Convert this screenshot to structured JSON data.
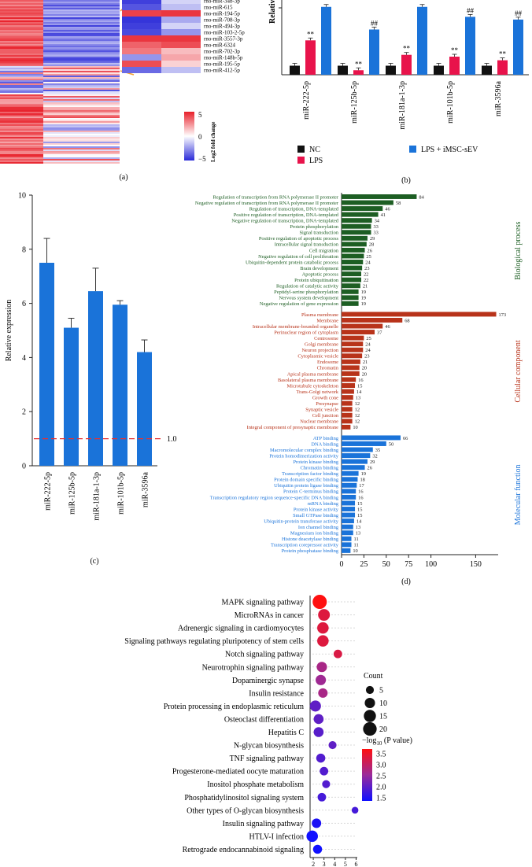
{
  "panel_a": {
    "label": "(a)",
    "zoom_rows": [
      "rno-miR-34b-3p",
      "rno-miR-615",
      "rno-miR-194-5p",
      "rno-miR-708-3p",
      "rno-miR-494-3p",
      "rno-miR-103-2-5p",
      "rno-miR-3557-3p",
      "rno-miR-6324",
      "rno-miR-702-3p",
      "rno-miR-148b-5p",
      "rno-miR-195-5p",
      "rno-miR-412-5p"
    ],
    "colorbar_label": "Log2 fold change",
    "colorbar_ticks": [
      "5",
      "0",
      "−5"
    ],
    "colors": {
      "high": "#e8202a",
      "mid": "#ffffff",
      "low": "#2a2ad8"
    }
  },
  "panel_b": {
    "label": "(b)",
    "ylabel": "Relative",
    "legend": [
      "NC",
      "LPS",
      "LPS + iMSC-sEV"
    ],
    "legend_colors": [
      "#111111",
      "#e8134b",
      "#1a73d9"
    ],
    "categories": [
      "miR-222-5p",
      "miR-125b-5p",
      "miR-181a-1-3p",
      "miR-101b-5p",
      "miR-3596a"
    ],
    "series": [
      {
        "name": "NC",
        "values": [
          1,
          1,
          1,
          1,
          1
        ]
      },
      {
        "name": "LPS",
        "values": [
          3.8,
          0.5,
          2.2,
          2.0,
          1.6
        ]
      },
      {
        "name": "LPS + iMSC-sEV",
        "values": [
          7.5,
          5.0,
          7.5,
          6.4,
          6.1
        ]
      }
    ],
    "marks": {
      "lps": "**",
      "sev": "##"
    }
  },
  "panel_c": {
    "label": "(c)",
    "chart_data": {
      "type": "bar",
      "categories": [
        "miR-222-5p",
        "miR-125b-5p",
        "miR-181a-1-3p",
        "miR-101b-5p",
        "miR-3596a"
      ],
      "values": [
        7.5,
        5.1,
        6.45,
        5.95,
        4.2
      ],
      "errors": [
        0.9,
        0.35,
        0.85,
        0.15,
        0.45
      ],
      "ylabel": "Relative expression",
      "ylim": [
        0,
        10
      ],
      "yticks": [
        "0",
        "2",
        "4",
        "6",
        "8",
        "10"
      ],
      "reference_line": 1.0,
      "reference_label": "1.0",
      "bar_color": "#1a73d9"
    }
  },
  "panel_d": {
    "label": "(d)",
    "xticks": [
      "0",
      "25",
      "50",
      "75",
      "100",
      "150"
    ],
    "groups": [
      {
        "name": "Biological process",
        "color": "#1d5e23",
        "terms": [
          [
            "Regulation of transcription from RNA polymerase II promoter",
            84
          ],
          [
            "Negative regulation of transcription from RNA polymerase II promoter",
            58
          ],
          [
            "Regulation of transcription, DNA-templated",
            46
          ],
          [
            "Positive regulation of transcription, DNA-templated",
            41
          ],
          [
            "Negative regulation of transcription, DNA-templated",
            34
          ],
          [
            "Protein phosphorylation",
            33
          ],
          [
            "Signal transduction",
            33
          ],
          [
            "Positive regulation of apoptotic process",
            29
          ],
          [
            "Intracellular signal transduction",
            28
          ],
          [
            "Cell migration",
            26
          ],
          [
            "Negative regulation of cell proliferation",
            25
          ],
          [
            "Ubiquitin-dependent protein catabolic process",
            24
          ],
          [
            "Brain development",
            23
          ],
          [
            "Apoptotic process",
            22
          ],
          [
            "Protein ubiquitination",
            22
          ],
          [
            "Regulation of catalytic activity",
            21
          ],
          [
            "Peptidyl-serine phosphorylation",
            19
          ],
          [
            "Nervous system development",
            19
          ],
          [
            "Negative regulation of gene expression",
            19
          ]
        ]
      },
      {
        "name": "Cellular component",
        "color": "#b8331a",
        "terms": [
          [
            "Plasma membrane",
            173
          ],
          [
            "Membrane",
            68
          ],
          [
            "Intracellular membrane-bounded organelle",
            46
          ],
          [
            "Perinuclear region of cytoplasm",
            37
          ],
          [
            "Centrosome",
            25
          ],
          [
            "Golgi membrane",
            24
          ],
          [
            "Neuron projection",
            24
          ],
          [
            "Cytoplasmic vesicle",
            23
          ],
          [
            "Endosome",
            21
          ],
          [
            "Chromatin",
            20
          ],
          [
            "Apical plasma membrane",
            20
          ],
          [
            "Basolateral plasma membrane",
            16
          ],
          [
            "Microtubule cytoskeleton",
            15
          ],
          [
            "Trans-Golgi network",
            14
          ],
          [
            "Growth cone",
            13
          ],
          [
            "Presynapse",
            12
          ],
          [
            "Synaptic vesicle",
            12
          ],
          [
            "Cell junction",
            12
          ],
          [
            "Nuclear membrane",
            12
          ],
          [
            "Integral component of presynaptic membrane",
            10
          ]
        ]
      },
      {
        "name": "Molecular function",
        "color": "#1a73d9",
        "terms": [
          [
            "ATP binding",
            66
          ],
          [
            "DNA binding",
            50
          ],
          [
            "Macromolecular complex binding",
            35
          ],
          [
            "Protein homodimerization activity",
            32
          ],
          [
            "Protein kinase binding",
            29
          ],
          [
            "Chromatin binding",
            26
          ],
          [
            "Transcription factor binding",
            19
          ],
          [
            "Protein domain specific binding",
            18
          ],
          [
            "Ubiquitin protein ligase binding",
            17
          ],
          [
            "Protein C-terminus binding",
            16
          ],
          [
            "Transcription regulatory region sequence-specific DNA binding",
            16
          ],
          [
            "mRNA binding",
            15
          ],
          [
            "Protein kinase activity",
            15
          ],
          [
            "Small GTPase binding",
            15
          ],
          [
            "Ubiquitin-protein transferase activity",
            14
          ],
          [
            "Ion channel binding",
            13
          ],
          [
            "Magnesium ion binding",
            13
          ],
          [
            "Histone deacetylase binding",
            11
          ],
          [
            "Transcription corepressor activity",
            11
          ],
          [
            "Protein phosphatase binding",
            10
          ]
        ]
      }
    ]
  },
  "panel_e": {
    "xticks": [
      "2",
      "3",
      "4",
      "5",
      "6"
    ],
    "pathways": [
      [
        "MAPK signaling pathway",
        2.6,
        22,
        3.6
      ],
      [
        "MicroRNAs in cancer",
        3.0,
        14,
        3.25
      ],
      [
        "Adrenergic signaling in cardiomyocytes",
        2.9,
        13,
        3.25
      ],
      [
        "Signaling pathways regulating pluripotency of stem cells",
        2.9,
        13,
        3.25
      ],
      [
        "Notch signaling pathway",
        4.3,
        6,
        3.2
      ],
      [
        "Neurotrophin signaling pathway",
        2.8,
        10,
        2.7
      ],
      [
        "Dopaminergic synapse",
        2.7,
        10,
        2.6
      ],
      [
        "Insulin resistance",
        2.9,
        8,
        2.7
      ],
      [
        "Protein processing in endoplasmic reticulum",
        2.2,
        12,
        2.1
      ],
      [
        "Osteoclast differentiation",
        2.5,
        9,
        2.1
      ],
      [
        "Hepatitis C",
        2.5,
        9,
        2.05
      ],
      [
        "N-glycan biosynthesis",
        3.8,
        5,
        2.1
      ],
      [
        "TNF signaling pathway",
        2.7,
        7,
        2.0
      ],
      [
        "Progesterone-mediated oocyte maturation",
        3.0,
        6,
        2.0
      ],
      [
        "Inositol phosphate metabolism",
        3.2,
        5,
        2.0
      ],
      [
        "Phosphatidylinositol signaling system",
        2.8,
        6,
        1.9
      ],
      [
        "Other types of O-glycan biosynthesis",
        5.9,
        3,
        1.9
      ],
      [
        "Insulin signaling pathway",
        2.3,
        8,
        1.6
      ],
      [
        "HTLV-I infection",
        1.9,
        13,
        1.5
      ],
      [
        "Retrograde endocannabinoid signaling",
        2.4,
        7,
        1.5
      ]
    ],
    "count_label": "Count",
    "count_ticks": [
      "5",
      "10",
      "15",
      "20"
    ],
    "pvalue_label": "−log",
    "pvalue_sub": "10",
    "pvalue_tail": " (P value)",
    "pvalue_ticks": [
      "3.5",
      "3.0",
      "2.5",
      "2.0",
      "1.5"
    ]
  }
}
